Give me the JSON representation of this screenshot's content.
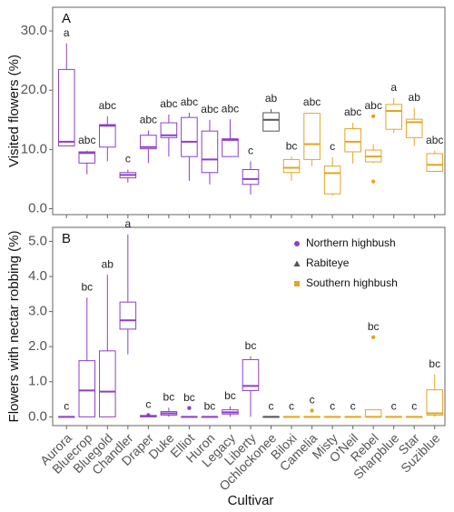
{
  "chart_data": [
    {
      "type": "box",
      "panel_label": "A",
      "ylabel": "Visited flowers (%)",
      "ylim": [
        -1,
        34
      ],
      "yticks": [
        {
          "value": 0,
          "label": "0.0"
        },
        {
          "value": 10,
          "label": "10.0"
        },
        {
          "value": 20,
          "label": "20.0"
        },
        {
          "value": 30,
          "label": "30.0"
        }
      ],
      "boxes": [
        {
          "min": 10.6,
          "q1": 10.6,
          "median": 11.3,
          "q3": 23.5,
          "max": 27.9,
          "outliers": []
        },
        {
          "min": 5.8,
          "q1": 7.7,
          "median": 9.4,
          "q3": 9.6,
          "max": 9.8,
          "outliers": []
        },
        {
          "min": 8.0,
          "q1": 10.4,
          "median": 14.0,
          "q3": 14.2,
          "max": 15.6,
          "outliers": []
        },
        {
          "min": 4.4,
          "q1": 5.2,
          "median": 5.7,
          "q3": 6.1,
          "max": 6.6,
          "outliers": []
        },
        {
          "min": 7.7,
          "q1": 10.1,
          "median": 10.4,
          "q3": 12.4,
          "max": 13.2,
          "outliers": []
        },
        {
          "min": 8.8,
          "q1": 12.0,
          "median": 12.4,
          "q3": 14.5,
          "max": 15.9,
          "outliers": []
        },
        {
          "min": 4.7,
          "q1": 8.8,
          "median": 11.3,
          "q3": 15.4,
          "max": 16.2,
          "outliers": []
        },
        {
          "min": 4.1,
          "q1": 6.1,
          "median": 8.3,
          "q3": 13.1,
          "max": 15.0,
          "outliers": []
        },
        {
          "min": 8.8,
          "q1": 8.8,
          "median": 11.6,
          "q3": 11.8,
          "max": 15.1,
          "outliers": []
        },
        {
          "min": 2.4,
          "q1": 4.1,
          "median": 5.0,
          "q3": 6.6,
          "max": 8.0,
          "outliers": []
        },
        {
          "min": 13.1,
          "q1": 13.1,
          "median": 15.0,
          "q3": 16.2,
          "max": 16.8,
          "outliers": []
        },
        {
          "min": 4.7,
          "q1": 6.1,
          "median": 6.9,
          "q3": 8.3,
          "max": 8.8,
          "outliers": []
        },
        {
          "min": 7.2,
          "q1": 8.3,
          "median": 10.9,
          "q3": 16.1,
          "max": 16.2,
          "outliers": []
        },
        {
          "min": 2.2,
          "q1": 2.5,
          "median": 6.0,
          "q3": 7.2,
          "max": 8.7,
          "outliers": []
        },
        {
          "min": 7.6,
          "q1": 9.6,
          "median": 11.3,
          "q3": 13.5,
          "max": 14.5,
          "outliers": []
        },
        {
          "min": 7.7,
          "q1": 7.9,
          "median": 8.8,
          "q3": 9.9,
          "max": 10.9,
          "outliers": [
            15.6,
            4.6
          ]
        },
        {
          "min": 12.8,
          "q1": 13.4,
          "median": 16.5,
          "q3": 17.6,
          "max": 18.7,
          "outliers": []
        },
        {
          "min": 10.6,
          "q1": 12.0,
          "median": 14.6,
          "q3": 15.1,
          "max": 17.0,
          "outliers": []
        },
        {
          "min": 6.3,
          "q1": 6.3,
          "median": 7.4,
          "q3": 9.3,
          "max": 9.8,
          "outliers": []
        }
      ],
      "letters": [
        "a",
        "abc",
        "abc",
        "c",
        "abc",
        "abc",
        "abc",
        "abc",
        "abc",
        "c",
        "ab",
        "bc",
        "abc",
        "c",
        "abc",
        "abc",
        "a",
        "ab",
        "abc"
      ]
    },
    {
      "type": "box",
      "panel_label": "B",
      "ylabel": "Flowers with nectar robbing (%)",
      "xlabel": "Cultivar",
      "ylim": [
        -0.25,
        5.4
      ],
      "yticks": [
        {
          "value": 0,
          "label": "0.0"
        },
        {
          "value": 1,
          "label": "1.0"
        },
        {
          "value": 2,
          "label": "2.0"
        },
        {
          "value": 3,
          "label": "3.0"
        },
        {
          "value": 4,
          "label": "4.0"
        },
        {
          "value": 5,
          "label": "5.0"
        }
      ],
      "categories": [
        "Aurora",
        "Bluecrop",
        "Bluegold",
        "Chandler",
        "Draper",
        "Duke",
        "Elliot",
        "Huron",
        "Legacy",
        "Liberty",
        "Ochlockonee",
        "Biloxi",
        "Camelia",
        "Misty",
        "O'Neil",
        "Rebel",
        "Sharpblue",
        "Star",
        "Suziblue"
      ],
      "groups": [
        {
          "name": "Northern highbush",
          "color": "#8e3fc6",
          "marker": "circle"
        },
        {
          "name": "Rabiteye",
          "color": "#555555",
          "marker": "triangle"
        },
        {
          "name": "Southern highbush",
          "color": "#e3a623",
          "marker": "square"
        }
      ],
      "category_group": [
        0,
        0,
        0,
        0,
        0,
        0,
        0,
        0,
        0,
        0,
        1,
        2,
        2,
        2,
        2,
        2,
        2,
        2,
        2
      ],
      "boxes": [
        {
          "min": 0,
          "q1": 0,
          "median": 0,
          "q3": 0,
          "max": 0,
          "outliers": []
        },
        {
          "min": 0,
          "q1": 0,
          "median": 0.75,
          "q3": 1.6,
          "max": 3.4,
          "outliers": []
        },
        {
          "min": 0,
          "q1": 0,
          "median": 0.72,
          "q3": 1.88,
          "max": 4.05,
          "outliers": []
        },
        {
          "min": 1.78,
          "q1": 2.5,
          "median": 2.75,
          "q3": 3.27,
          "max": 5.2,
          "outliers": []
        },
        {
          "min": 0,
          "q1": 0,
          "median": 0.02,
          "q3": 0.04,
          "max": 0.04,
          "outliers": [
            0.05
          ]
        },
        {
          "min": 0,
          "q1": 0.05,
          "median": 0.1,
          "q3": 0.15,
          "max": 0.26,
          "outliers": []
        },
        {
          "min": 0,
          "q1": 0,
          "median": 0,
          "q3": 0,
          "max": 0,
          "outliers": [
            0.25
          ]
        },
        {
          "min": 0,
          "q1": 0,
          "median": 0,
          "q3": 0,
          "max": 0,
          "outliers": []
        },
        {
          "min": 0,
          "q1": 0.08,
          "median": 0.13,
          "q3": 0.2,
          "max": 0.3,
          "outliers": []
        },
        {
          "min": 0,
          "q1": 0.75,
          "median": 0.88,
          "q3": 1.63,
          "max": 1.73,
          "outliers": []
        },
        {
          "min": 0,
          "q1": 0,
          "median": 0,
          "q3": 0,
          "max": 0,
          "outliers": []
        },
        {
          "min": 0,
          "q1": 0,
          "median": 0,
          "q3": 0,
          "max": 0,
          "outliers": []
        },
        {
          "min": 0,
          "q1": 0,
          "median": 0,
          "q3": 0,
          "max": 0,
          "outliers": [
            0.18
          ]
        },
        {
          "min": 0,
          "q1": 0,
          "median": 0,
          "q3": 0,
          "max": 0,
          "outliers": []
        },
        {
          "min": 0,
          "q1": 0,
          "median": 0,
          "q3": 0,
          "max": 0,
          "outliers": []
        },
        {
          "min": 0,
          "q1": 0,
          "median": 0,
          "q3": 0.2,
          "max": 0.2,
          "outliers": [
            2.27
          ]
        },
        {
          "min": 0,
          "q1": 0,
          "median": 0,
          "q3": 0,
          "max": 0,
          "outliers": []
        },
        {
          "min": 0,
          "q1": 0,
          "median": 0,
          "q3": 0,
          "max": 0,
          "outliers": []
        },
        {
          "min": 0,
          "q1": 0.05,
          "median": 0.1,
          "q3": 0.77,
          "max": 1.21,
          "outliers": []
        }
      ],
      "letters": [
        "c",
        "bc",
        "ab",
        "a",
        "c",
        "bc",
        "bc",
        "bc",
        "bc",
        "bc",
        "c",
        "c",
        "c",
        "c",
        "c",
        "bc",
        "c",
        "c",
        "bc"
      ]
    }
  ]
}
